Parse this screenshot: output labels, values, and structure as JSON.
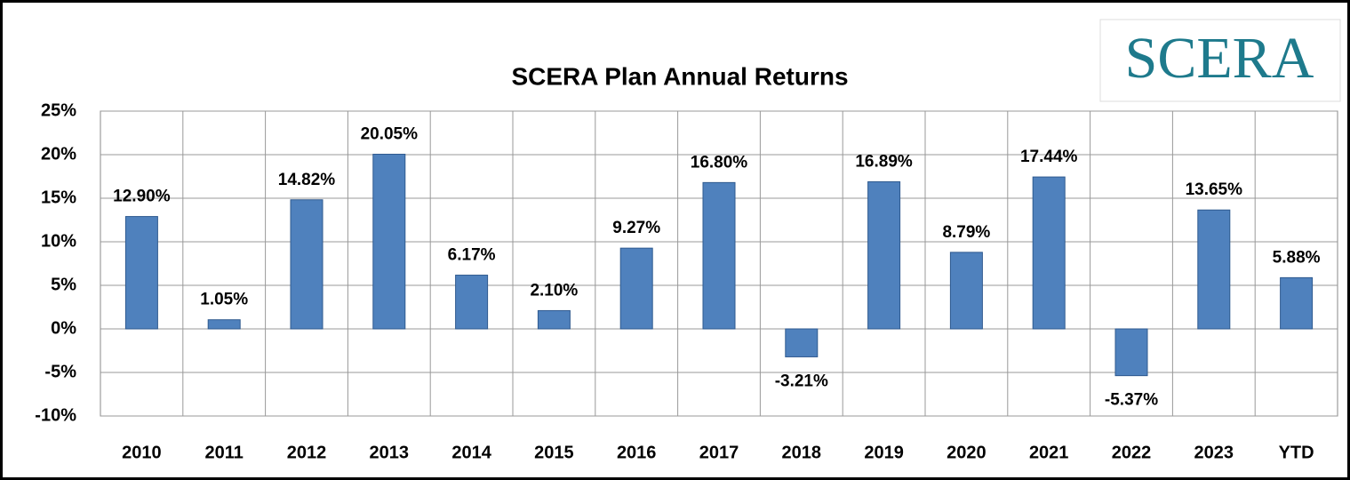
{
  "chart_data": {
    "type": "bar",
    "title": "SCERA Plan Annual Returns",
    "logo": "SCERA",
    "categories": [
      "2010",
      "2011",
      "2012",
      "2013",
      "2014",
      "2015",
      "2016",
      "2017",
      "2018",
      "2019",
      "2020",
      "2021",
      "2022",
      "2023",
      "YTD"
    ],
    "values": [
      12.9,
      1.05,
      14.82,
      20.05,
      6.17,
      2.1,
      9.27,
      16.8,
      -3.21,
      16.89,
      8.79,
      17.44,
      -5.37,
      13.65,
      5.88
    ],
    "value_labels": [
      "12.90%",
      "1.05%",
      "14.82%",
      "20.05%",
      "6.17%",
      "2.10%",
      "9.27%",
      "16.80%",
      "-3.21%",
      "16.89%",
      "8.79%",
      "17.44%",
      "-5.37%",
      "13.65%",
      "5.88%"
    ],
    "color": "#4f81bd",
    "ylim": [
      -10,
      25
    ],
    "yticks": [
      {
        "value": -10,
        "label": "-10%"
      },
      {
        "value": -5,
        "label": "-5%"
      },
      {
        "value": 0,
        "label": "0%"
      },
      {
        "value": 5,
        "label": "5%"
      },
      {
        "value": 10,
        "label": "10%"
      },
      {
        "value": 15,
        "label": "15%"
      },
      {
        "value": 20,
        "label": "20%"
      },
      {
        "value": 25,
        "label": "25%"
      }
    ],
    "grid": true
  }
}
